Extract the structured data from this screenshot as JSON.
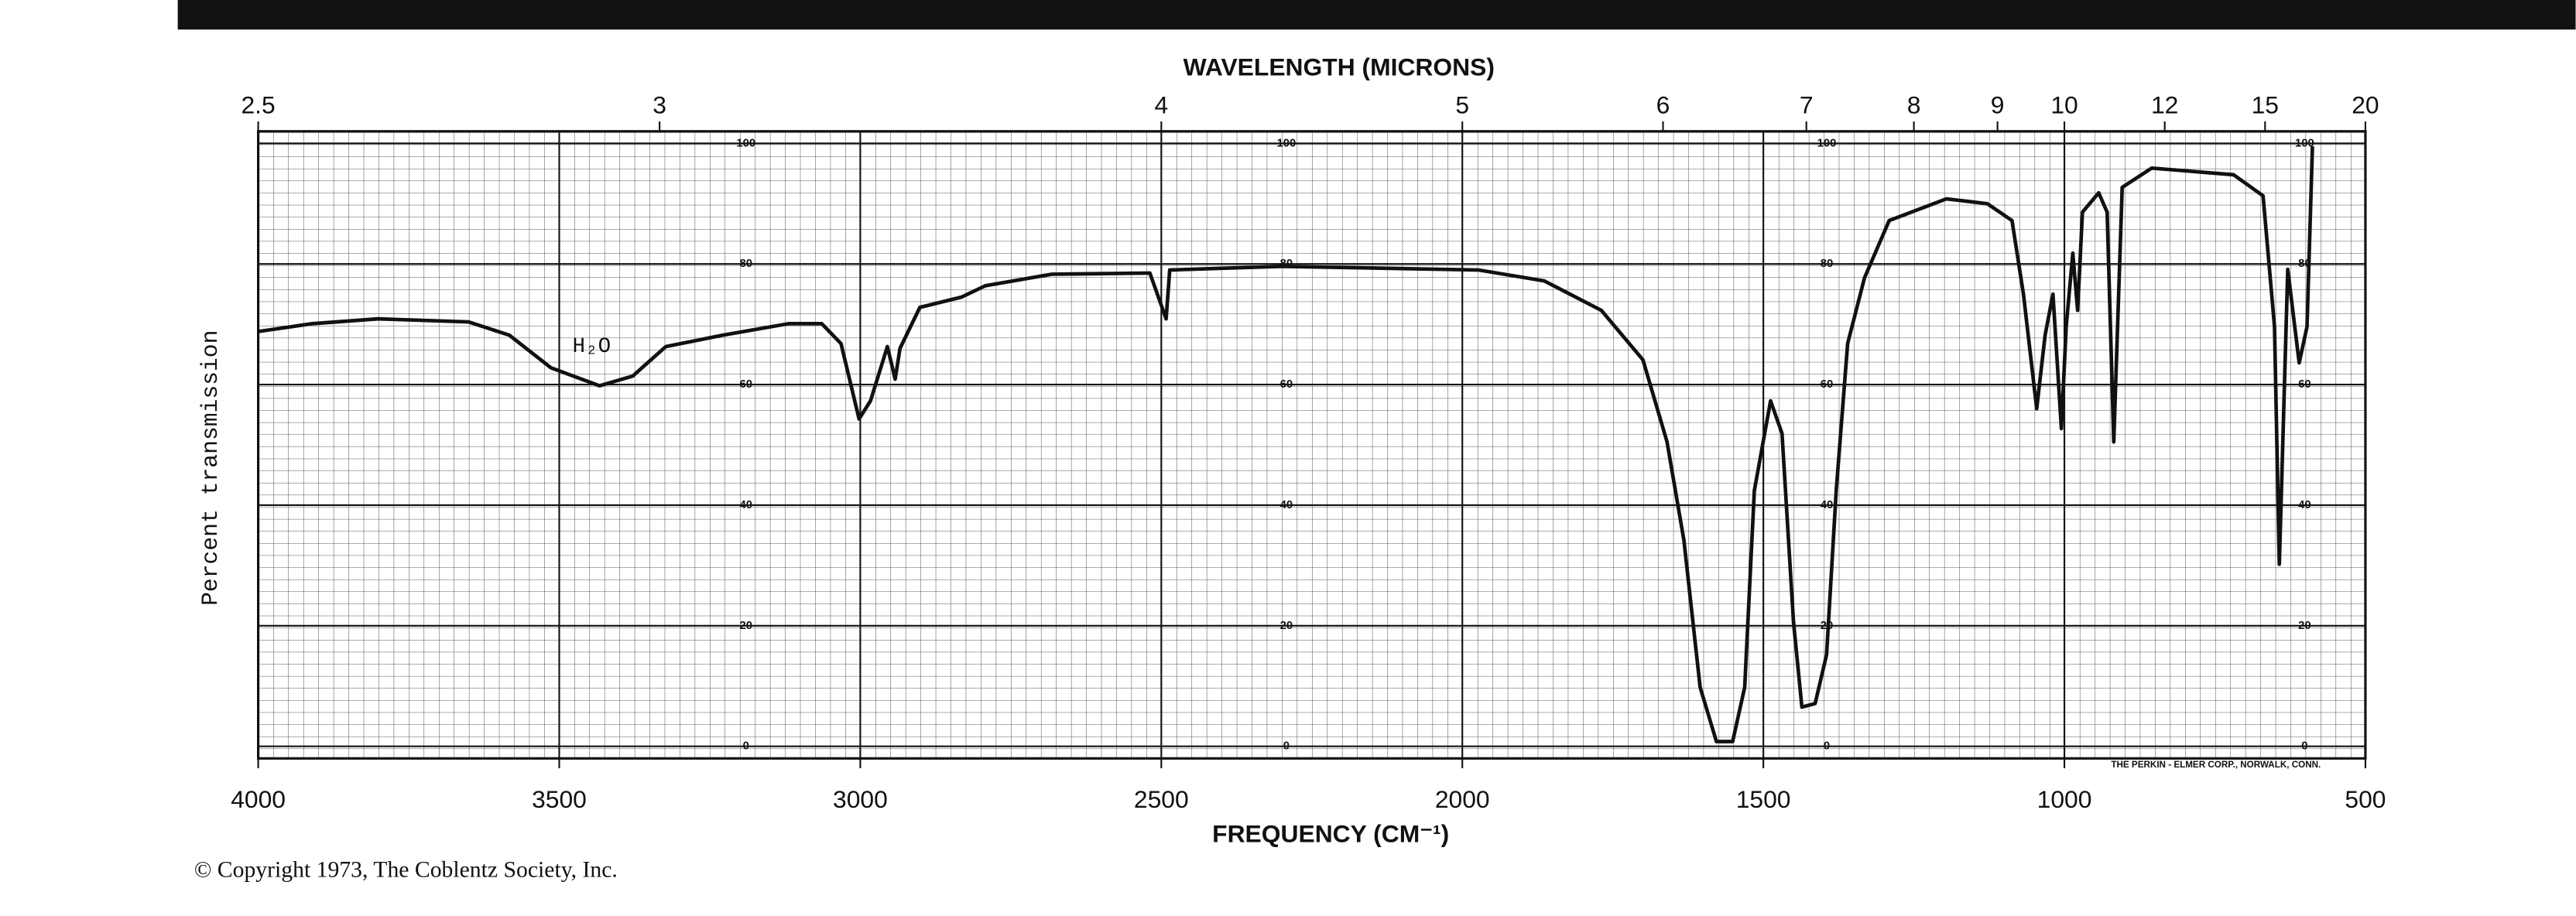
{
  "chart_data": {
    "type": "line",
    "title": "WAVELENGTH (MICRONS)",
    "x_label": "FREQUENCY (CM⁻¹)",
    "y_label": "Percent transmission",
    "annotation": "H₂O",
    "copyright": "© Copyright 1973, The Coblentz Society, Inc.",
    "maker": "THE PERKIN - ELMER CORP., NORWALK, CONN.",
    "x": [
      4000,
      3910,
      3801,
      3651,
      3583,
      3514,
      3433,
      3378,
      3323,
      3228,
      3119,
      3064,
      3032,
      3002,
      2983,
      2955,
      2942,
      2934,
      2901,
      2832,
      2792,
      2682,
      2519,
      2492,
      2486,
      2301,
      1973,
      1864,
      1769,
      1700,
      1660,
      1632,
      1605,
      1578,
      1551,
      1531,
      1515,
      1488,
      1469,
      1450,
      1436,
      1414,
      1395,
      1379,
      1360,
      1332,
      1291,
      1196,
      1128,
      1087,
      1068,
      1046,
      1032,
      1019,
      1005,
      997,
      986,
      978,
      970,
      943,
      929,
      918,
      904,
      855,
      719,
      670,
      651,
      643,
      629,
      610,
      597,
      588
    ],
    "series": [
      {
        "name": "Percent transmission",
        "color": "#111111",
        "values": [
          68.8,
          70.1,
          70.9,
          70.4,
          68.2,
          62.8,
          59.8,
          61.4,
          66.3,
          68.2,
          70.1,
          70.1,
          66.8,
          54.3,
          57.3,
          66.3,
          60.9,
          66.0,
          72.8,
          74.5,
          76.4,
          78.3,
          78.5,
          70.9,
          79.0,
          79.6,
          79.0,
          77.2,
          72.3,
          64.1,
          50.5,
          34.2,
          9.8,
          0.8,
          0.8,
          9.8,
          42.4,
          57.3,
          51.9,
          20.7,
          6.5,
          7.1,
          15.2,
          42.4,
          66.8,
          77.7,
          87.2,
          90.8,
          90.0,
          87.2,
          75.0,
          56.0,
          68.2,
          75.0,
          52.7,
          69.6,
          81.8,
          72.3,
          88.6,
          91.8,
          88.6,
          50.5,
          92.7,
          95.9,
          94.8,
          91.3,
          69.6,
          30.2,
          79.1,
          63.6,
          69.6,
          99.5
        ]
      }
    ],
    "xlim": [
      4000,
      500
    ],
    "xticks": [
      4000,
      3500,
      3000,
      2500,
      2000,
      1500,
      1000,
      500
    ],
    "x2ticks": [
      2.5,
      3,
      4,
      5,
      6,
      7,
      8,
      9,
      10,
      12,
      15,
      20
    ],
    "ylim": [
      -2,
      102
    ],
    "yticks": [
      0,
      20,
      40,
      60,
      80,
      100
    ],
    "grid": true
  }
}
